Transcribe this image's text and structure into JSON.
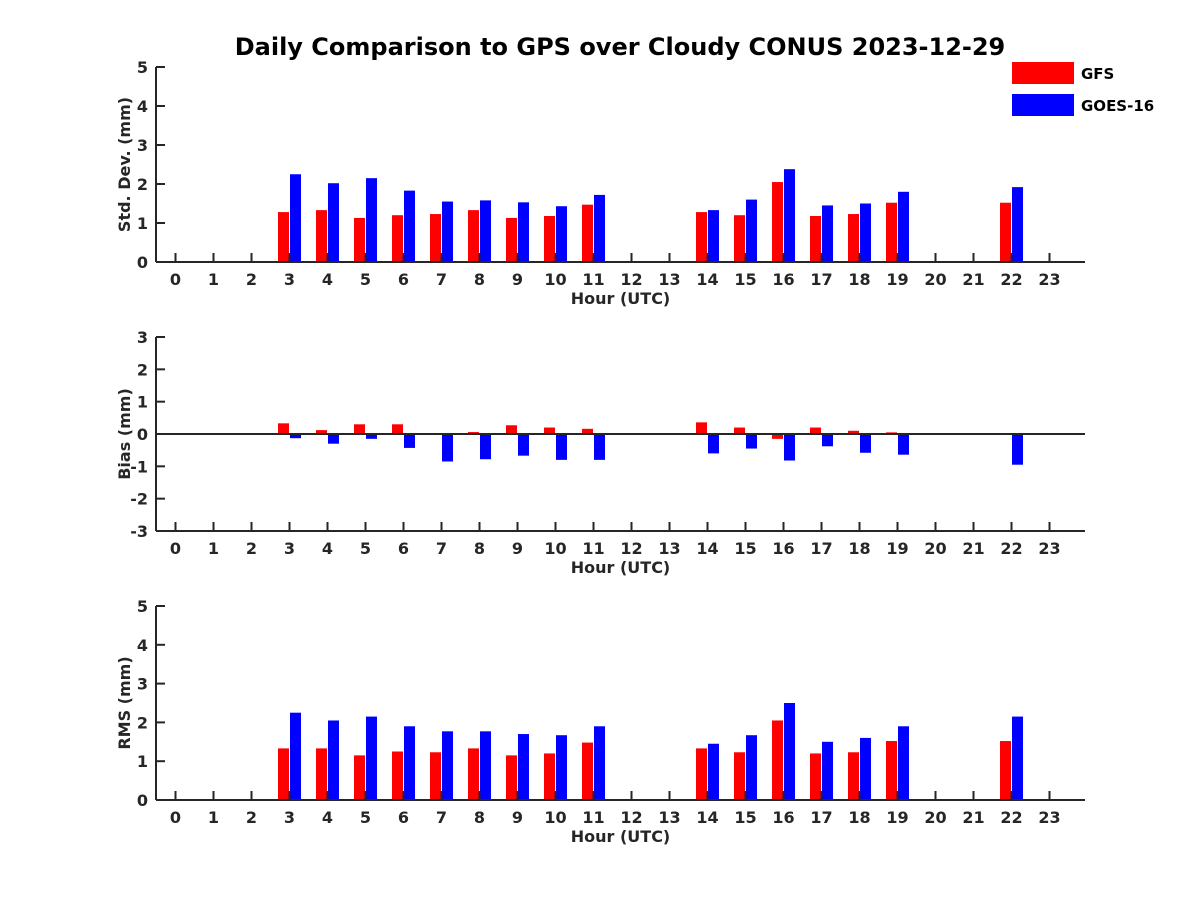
{
  "title": "Daily Comparison to GPS over Cloudy CONUS 2023-12-29",
  "legend": [
    {
      "name": "GFS",
      "color": "#ff0000"
    },
    {
      "name": "GOES-16",
      "color": "#0000ff"
    }
  ],
  "chart_data": [
    {
      "type": "bar",
      "xlabel": "Hour (UTC)",
      "ylabel": "Std. Dev. (mm)",
      "categories": [
        "0",
        "1",
        "2",
        "3",
        "4",
        "5",
        "6",
        "7",
        "8",
        "9",
        "10",
        "11",
        "12",
        "13",
        "14",
        "15",
        "16",
        "17",
        "18",
        "19",
        "20",
        "21",
        "22",
        "23"
      ],
      "ylim": [
        0,
        5
      ],
      "yticks": [
        0,
        1,
        2,
        3,
        4,
        5
      ],
      "grid": false,
      "series": [
        {
          "name": "GFS",
          "color": "#ff0000",
          "values": [
            null,
            null,
            null,
            1.28,
            1.33,
            1.13,
            1.2,
            1.23,
            1.33,
            1.13,
            1.18,
            1.47,
            null,
            null,
            1.28,
            1.2,
            2.05,
            1.18,
            1.23,
            1.52,
            null,
            null,
            1.52,
            null
          ]
        },
        {
          "name": "GOES-16",
          "color": "#0000ff",
          "values": [
            null,
            null,
            null,
            2.25,
            2.02,
            2.15,
            1.83,
            1.55,
            1.58,
            1.53,
            1.43,
            1.72,
            null,
            null,
            1.33,
            1.6,
            2.38,
            1.45,
            1.5,
            1.8,
            null,
            null,
            1.92,
            null
          ]
        }
      ]
    },
    {
      "type": "bar",
      "xlabel": "Hour (UTC)",
      "ylabel": "Bias (mm)",
      "categories": [
        "0",
        "1",
        "2",
        "3",
        "4",
        "5",
        "6",
        "7",
        "8",
        "9",
        "10",
        "11",
        "12",
        "13",
        "14",
        "15",
        "16",
        "17",
        "18",
        "19",
        "20",
        "21",
        "22",
        "23"
      ],
      "ylim": [
        -3,
        3
      ],
      "yticks": [
        -3,
        -2,
        -1,
        0,
        1,
        2,
        3
      ],
      "grid": false,
      "series": [
        {
          "name": "GFS",
          "color": "#ff0000",
          "values": [
            null,
            null,
            null,
            0.33,
            0.12,
            0.3,
            0.3,
            0.02,
            0.06,
            0.27,
            0.2,
            0.16,
            null,
            null,
            0.36,
            0.2,
            -0.15,
            0.2,
            0.1,
            0.05,
            null,
            null,
            0.02,
            null
          ]
        },
        {
          "name": "GOES-16",
          "color": "#0000ff",
          "values": [
            null,
            null,
            null,
            -0.13,
            -0.3,
            -0.15,
            -0.43,
            -0.85,
            -0.78,
            -0.67,
            -0.8,
            -0.8,
            null,
            null,
            -0.6,
            -0.45,
            -0.82,
            -0.38,
            -0.58,
            -0.64,
            null,
            null,
            -0.95,
            null
          ]
        }
      ]
    },
    {
      "type": "bar",
      "xlabel": "Hour (UTC)",
      "ylabel": "RMS (mm)",
      "categories": [
        "0",
        "1",
        "2",
        "3",
        "4",
        "5",
        "6",
        "7",
        "8",
        "9",
        "10",
        "11",
        "12",
        "13",
        "14",
        "15",
        "16",
        "17",
        "18",
        "19",
        "20",
        "21",
        "22",
        "23"
      ],
      "ylim": [
        0,
        5
      ],
      "yticks": [
        0,
        1,
        2,
        3,
        4,
        5
      ],
      "grid": false,
      "series": [
        {
          "name": "GFS",
          "color": "#ff0000",
          "values": [
            null,
            null,
            null,
            1.33,
            1.33,
            1.15,
            1.25,
            1.23,
            1.33,
            1.15,
            1.2,
            1.48,
            null,
            null,
            1.33,
            1.23,
            2.05,
            1.2,
            1.23,
            1.52,
            null,
            null,
            1.52,
            null
          ]
        },
        {
          "name": "GOES-16",
          "color": "#0000ff",
          "values": [
            null,
            null,
            null,
            2.25,
            2.05,
            2.15,
            1.9,
            1.77,
            1.77,
            1.7,
            1.67,
            1.9,
            null,
            null,
            1.45,
            1.67,
            2.5,
            1.5,
            1.6,
            1.9,
            null,
            null,
            2.15,
            null
          ]
        }
      ]
    }
  ]
}
